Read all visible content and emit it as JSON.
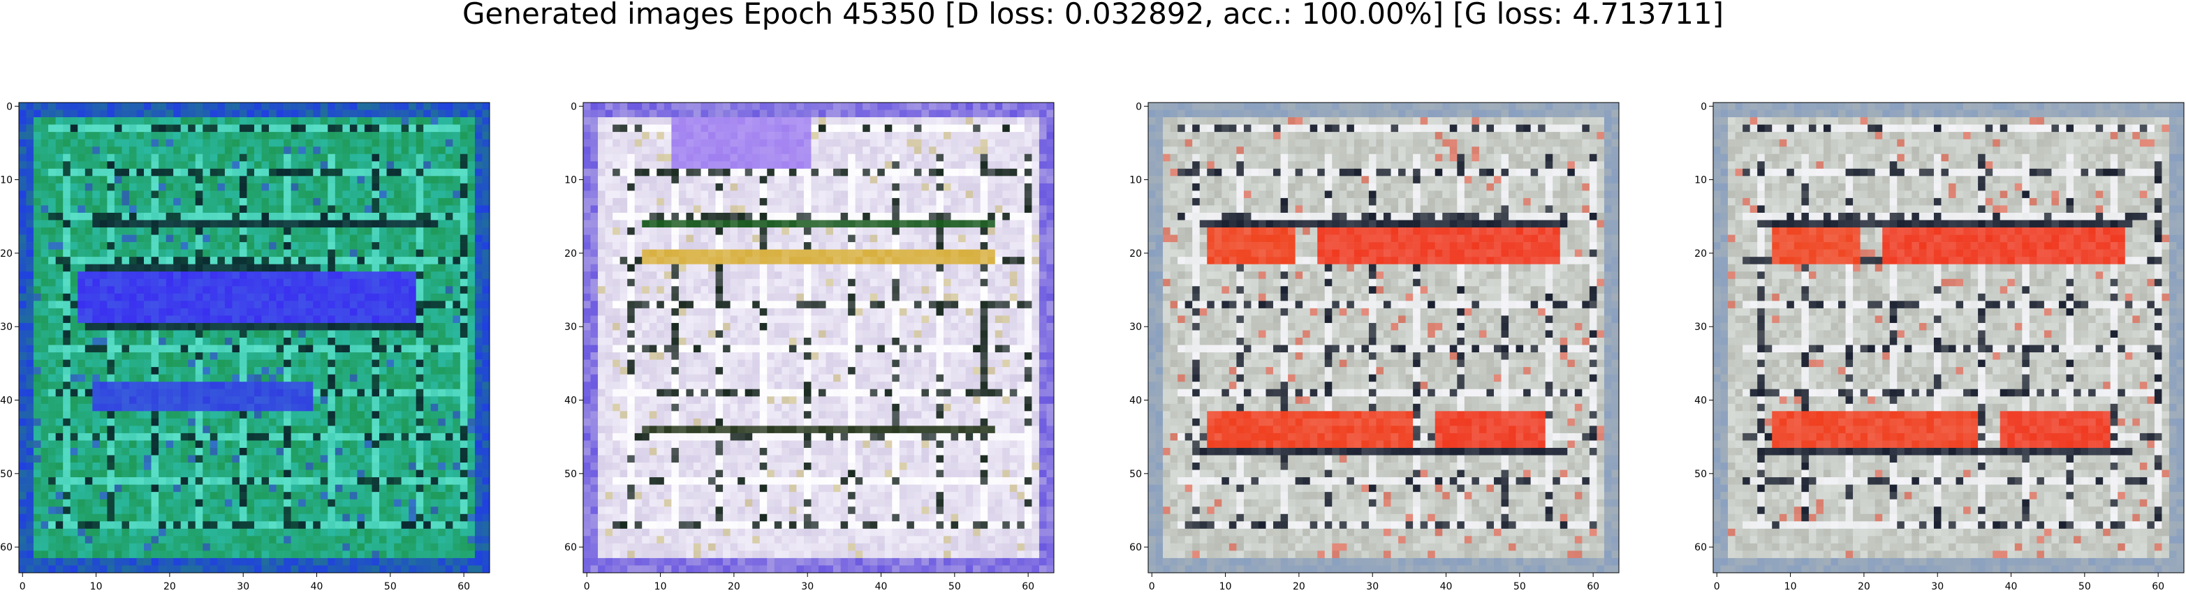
{
  "figure": {
    "title": "Generated images Epoch 45350 [D loss: 0.032892, acc.: 100.00%] [G loss: 4.713711]"
  },
  "chart_data": [
    {
      "type": "heatmap",
      "title": "",
      "xlim": [
        -0.5,
        63.5
      ],
      "ylim": [
        63.5,
        -0.5
      ],
      "xticks": [
        0,
        10,
        20,
        30,
        40,
        50,
        60
      ],
      "yticks": [
        0,
        10,
        20,
        30,
        40,
        50,
        60
      ],
      "tick_labels": [
        "0",
        "10",
        "20",
        "30",
        "40",
        "50",
        "60"
      ],
      "grid": false,
      "palette": {
        "base": "#1f9b5a",
        "alt": "#2ab8a0",
        "border": "#2040e0",
        "dark": "#0a2a30",
        "light": "#5be0c8",
        "accent": "#3a30f0"
      },
      "regions": [
        {
          "x0": 8,
          "x1": 53,
          "y0": 23,
          "y1": 29,
          "color": "#3a30f0"
        },
        {
          "x0": 10,
          "x1": 39,
          "y0": 38,
          "y1": 41,
          "color": "#3040e0"
        },
        {
          "x0": 9,
          "x1": 40,
          "y0": 22,
          "y1": 22,
          "color": "#0a2a30"
        },
        {
          "x0": 9,
          "x1": 54,
          "y0": 30,
          "y1": 30,
          "color": "#0a2a30"
        },
        {
          "x0": 10,
          "x1": 56,
          "y0": 16,
          "y1": 16,
          "color": "#0a2a30"
        }
      ]
    },
    {
      "type": "heatmap",
      "title": "",
      "xlim": [
        -0.5,
        63.5
      ],
      "ylim": [
        63.5,
        -0.5
      ],
      "xticks": [
        0,
        10,
        20,
        30,
        40,
        50,
        60
      ],
      "yticks": [
        0,
        10,
        20,
        30,
        40,
        50,
        60
      ],
      "tick_labels": [
        "0",
        "10",
        "20",
        "30",
        "40",
        "50",
        "60"
      ],
      "grid": false,
      "palette": {
        "base": "#d8d0e8",
        "alt": "#f0ecf8",
        "border": "#6a58e0",
        "dark": "#1a2a20",
        "light": "#ffffff",
        "accent": "#c8b860"
      },
      "regions": [
        {
          "x0": 8,
          "x1": 55,
          "y0": 20,
          "y1": 21,
          "color": "#d8b040"
        },
        {
          "x0": 8,
          "x1": 55,
          "y0": 16,
          "y1": 16,
          "color": "#1a5a20"
        },
        {
          "x0": 8,
          "x1": 55,
          "y0": 44,
          "y1": 44,
          "color": "#2a3a20"
        },
        {
          "x0": 12,
          "x1": 30,
          "y0": 2,
          "y1": 8,
          "color": "#a080f0"
        }
      ]
    },
    {
      "type": "heatmap",
      "title": "",
      "xlim": [
        -0.5,
        63.5
      ],
      "ylim": [
        63.5,
        -0.5
      ],
      "xticks": [
        0,
        10,
        20,
        30,
        40,
        50,
        60
      ],
      "yticks": [
        0,
        10,
        20,
        30,
        40,
        50,
        60
      ],
      "tick_labels": [
        "0",
        "10",
        "20",
        "30",
        "40",
        "50",
        "60"
      ],
      "grid": false,
      "palette": {
        "base": "#b8bcb4",
        "alt": "#d8dcd8",
        "border": "#8aa0c0",
        "dark": "#1a2030",
        "light": "#f4f4f8",
        "accent": "#f03a20"
      },
      "regions": [
        {
          "x0": 8,
          "x1": 19,
          "y0": 17,
          "y1": 21,
          "color": "#f04420"
        },
        {
          "x0": 23,
          "x1": 55,
          "y0": 17,
          "y1": 21,
          "color": "#f03a20"
        },
        {
          "x0": 8,
          "x1": 35,
          "y0": 42,
          "y1": 46,
          "color": "#f04020"
        },
        {
          "x0": 39,
          "x1": 53,
          "y0": 42,
          "y1": 46,
          "color": "#f03a20"
        },
        {
          "x0": 7,
          "x1": 56,
          "y0": 16,
          "y1": 16,
          "color": "#1a2030"
        },
        {
          "x0": 7,
          "x1": 56,
          "y0": 47,
          "y1": 47,
          "color": "#1a2030"
        }
      ]
    },
    {
      "type": "heatmap",
      "title": "",
      "xlim": [
        -0.5,
        63.5
      ],
      "ylim": [
        63.5,
        -0.5
      ],
      "xticks": [
        0,
        10,
        20,
        30,
        40,
        50,
        60
      ],
      "yticks": [
        0,
        10,
        20,
        30,
        40,
        50,
        60
      ],
      "tick_labels": [
        "0",
        "10",
        "20",
        "30",
        "40",
        "50",
        "60"
      ],
      "grid": false,
      "palette": {
        "base": "#b8bcb4",
        "alt": "#d8dcd8",
        "border": "#8aa0c0",
        "dark": "#1a2030",
        "light": "#f4f4f8",
        "accent": "#f03a20"
      },
      "regions": [
        {
          "x0": 8,
          "x1": 19,
          "y0": 17,
          "y1": 21,
          "color": "#f04420"
        },
        {
          "x0": 23,
          "x1": 55,
          "y0": 17,
          "y1": 21,
          "color": "#f03a20"
        },
        {
          "x0": 8,
          "x1": 35,
          "y0": 42,
          "y1": 46,
          "color": "#f04020"
        },
        {
          "x0": 39,
          "x1": 53,
          "y0": 42,
          "y1": 46,
          "color": "#f03a20"
        },
        {
          "x0": 7,
          "x1": 56,
          "y0": 16,
          "y1": 16,
          "color": "#1a2030"
        },
        {
          "x0": 7,
          "x1": 56,
          "y0": 47,
          "y1": 47,
          "color": "#1a2030"
        }
      ]
    }
  ]
}
